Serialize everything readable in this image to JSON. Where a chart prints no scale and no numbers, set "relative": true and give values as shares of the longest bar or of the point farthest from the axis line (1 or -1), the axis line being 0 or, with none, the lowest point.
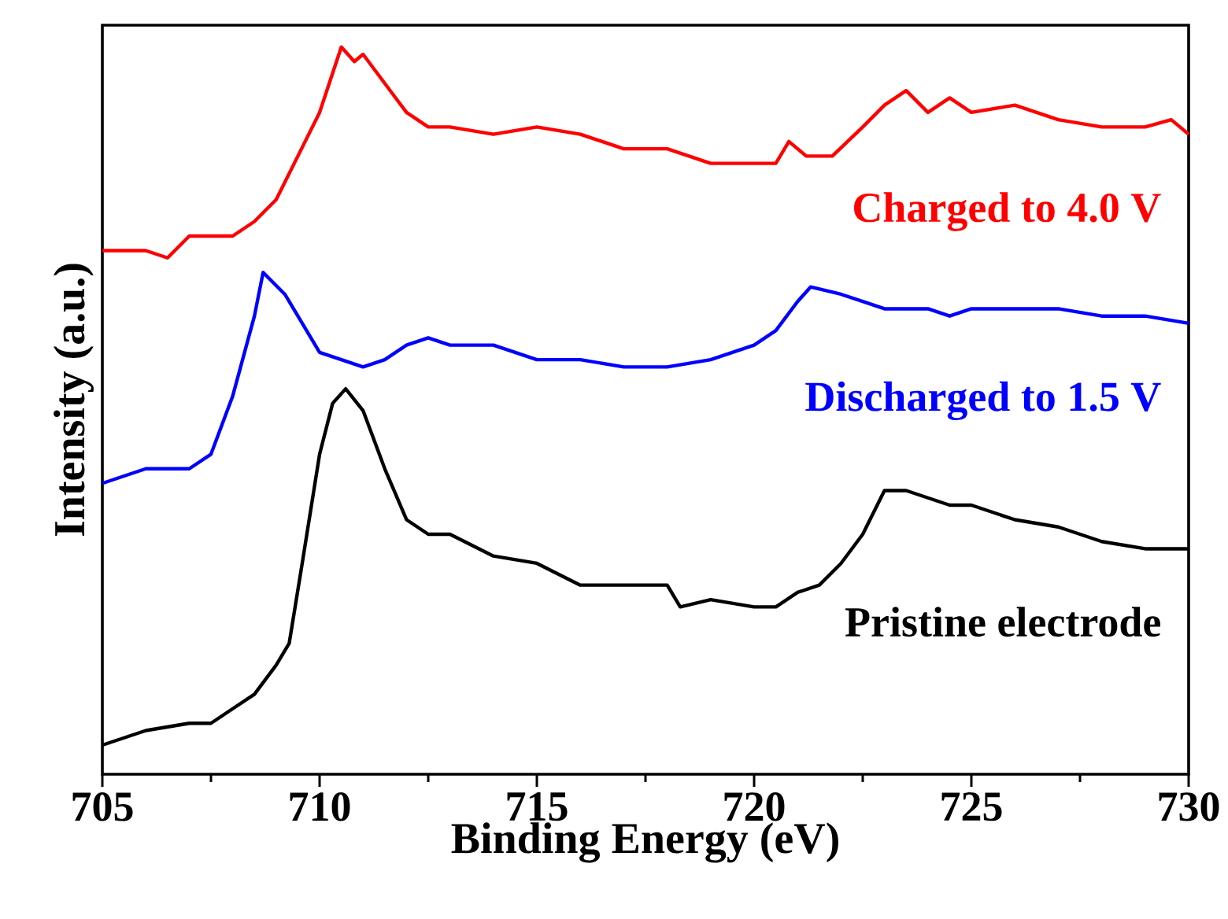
{
  "chart_data": {
    "type": "line",
    "xlabel": "Binding Energy (eV)",
    "ylabel": "Intensity (a.u.)",
    "relative": true,
    "xlim": [
      705,
      730
    ],
    "xticks": [
      705,
      {
        "value": 707.5,
        "label": null
      },
      710,
      {
        "value": 712.5,
        "label": null
      },
      715,
      {
        "value": 717.5,
        "label": null
      },
      720,
      {
        "value": 722.5,
        "label": null
      },
      725,
      {
        "value": 727.5,
        "label": null
      },
      730
    ],
    "tick_labels": "x",
    "grid": false,
    "legend": false,
    "marker": "none",
    "line_style": "solid",
    "series": [
      {
        "name": "Charged to 4.0 V",
        "color": "#ff0000",
        "x": [
          705,
          706,
          706.5,
          707,
          708,
          708.5,
          709,
          709.5,
          710,
          710.5,
          710.8,
          711,
          711.5,
          712,
          712.5,
          713,
          714,
          715,
          716,
          717,
          718,
          719,
          720,
          720.5,
          720.8,
          721.2,
          721.8,
          722.5,
          723,
          723.5,
          724,
          724.5,
          725,
          726,
          727,
          728,
          729,
          729.6,
          730
        ],
        "values": [
          0.72,
          0.72,
          0.71,
          0.74,
          0.74,
          0.76,
          0.79,
          0.85,
          0.91,
          1.0,
          0.98,
          0.99,
          0.95,
          0.91,
          0.89,
          0.89,
          0.88,
          0.89,
          0.88,
          0.86,
          0.86,
          0.84,
          0.84,
          0.84,
          0.87,
          0.85,
          0.85,
          0.89,
          0.92,
          0.94,
          0.91,
          0.93,
          0.91,
          0.92,
          0.9,
          0.89,
          0.89,
          0.9,
          0.88
        ]
      },
      {
        "name": "Discharged to 1.5 V",
        "color": "#0000ff",
        "x": [
          705,
          706,
          707,
          707.5,
          708,
          708.5,
          708.7,
          709.2,
          709.5,
          710,
          710.5,
          711,
          711.5,
          712,
          712.5,
          713,
          714,
          715,
          716,
          717,
          718,
          719,
          720,
          720.5,
          721,
          721.3,
          722,
          722.5,
          723,
          724,
          724.5,
          725,
          726,
          727,
          728,
          729,
          730
        ],
        "values": [
          0.4,
          0.42,
          0.42,
          0.44,
          0.52,
          0.63,
          0.69,
          0.66,
          0.63,
          0.58,
          0.57,
          0.56,
          0.57,
          0.59,
          0.6,
          0.59,
          0.59,
          0.57,
          0.57,
          0.56,
          0.56,
          0.57,
          0.59,
          0.61,
          0.65,
          0.67,
          0.66,
          0.65,
          0.64,
          0.64,
          0.63,
          0.64,
          0.64,
          0.64,
          0.63,
          0.63,
          0.62
        ]
      },
      {
        "name": "Pristine electrode",
        "color": "#000000",
        "x": [
          705,
          706,
          707,
          707.5,
          708,
          708.5,
          709,
          709.3,
          709.6,
          710,
          710.3,
          710.6,
          711,
          711.5,
          712,
          712.5,
          713,
          714,
          715,
          716,
          717,
          718,
          718.3,
          719,
          720,
          720.5,
          721,
          721.5,
          722,
          722.5,
          723,
          723.5,
          724,
          724.5,
          725,
          726,
          727,
          728,
          729,
          730
        ],
        "values": [
          0.04,
          0.06,
          0.07,
          0.07,
          0.09,
          0.11,
          0.15,
          0.18,
          0.29,
          0.44,
          0.51,
          0.53,
          0.5,
          0.42,
          0.35,
          0.33,
          0.33,
          0.3,
          0.29,
          0.26,
          0.26,
          0.26,
          0.23,
          0.24,
          0.23,
          0.23,
          0.25,
          0.26,
          0.29,
          0.33,
          0.39,
          0.39,
          0.38,
          0.37,
          0.37,
          0.35,
          0.34,
          0.32,
          0.31,
          0.31
        ]
      }
    ]
  }
}
